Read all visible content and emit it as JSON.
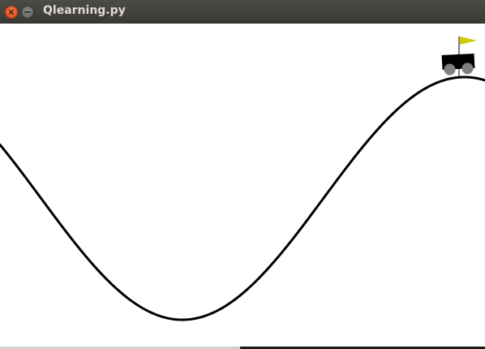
{
  "window": {
    "title": "Qlearning.py",
    "close_icon": "close-icon",
    "minimize_icon": "minimize-icon"
  },
  "scene": {
    "environment": "mountain-car",
    "track_color": "#000000",
    "car_color": "#000000",
    "wheel_color": "#808080",
    "flag_color": "#cccc00",
    "flag_pole_color": "#000000",
    "background": "#ffffff"
  }
}
